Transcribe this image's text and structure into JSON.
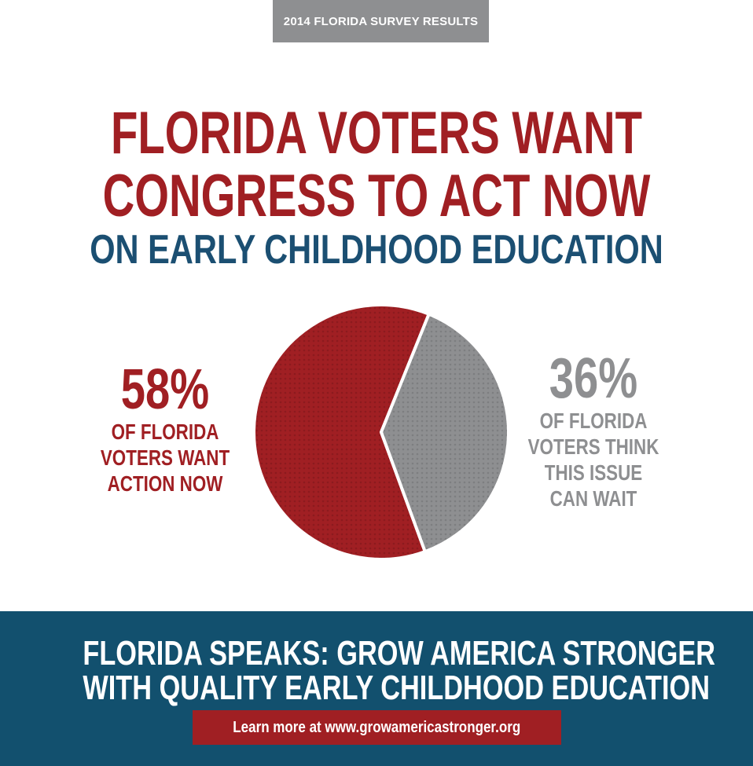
{
  "header": {
    "tag": "2014 FLORIDA SURVEY RESULTS",
    "headline_line1": "FLORIDA VOTERS WANT",
    "headline_line2": "CONGRESS TO ACT NOW",
    "subhead": "ON EARLY CHILDHOOD EDUCATION"
  },
  "stats": {
    "left": {
      "percent": "58%",
      "line1": "OF FLORIDA",
      "line2": "VOTERS WANT",
      "line3": "ACTION NOW"
    },
    "right": {
      "percent": "36%",
      "line1": "OF FLORIDA",
      "line2": "VOTERS THINK",
      "line3": "THIS ISSUE",
      "line4": "CAN WAIT"
    }
  },
  "colors": {
    "red": "#a01f23",
    "gray": "#8e8f91",
    "blue": "#12506e"
  },
  "chart_data": {
    "type": "pie",
    "categories": [
      "Want action now",
      "Think this issue can wait"
    ],
    "values": [
      58,
      36
    ],
    "colors": [
      "#a01f23",
      "#8e8f91"
    ],
    "title": ""
  },
  "footer": {
    "line1": "FLORIDA SPEAKS: GROW AMERICA STRONGER",
    "line2": "WITH QUALITY EARLY CHILDHOOD EDUCATION",
    "cta": "Learn more at www.growamericastronger.org"
  }
}
